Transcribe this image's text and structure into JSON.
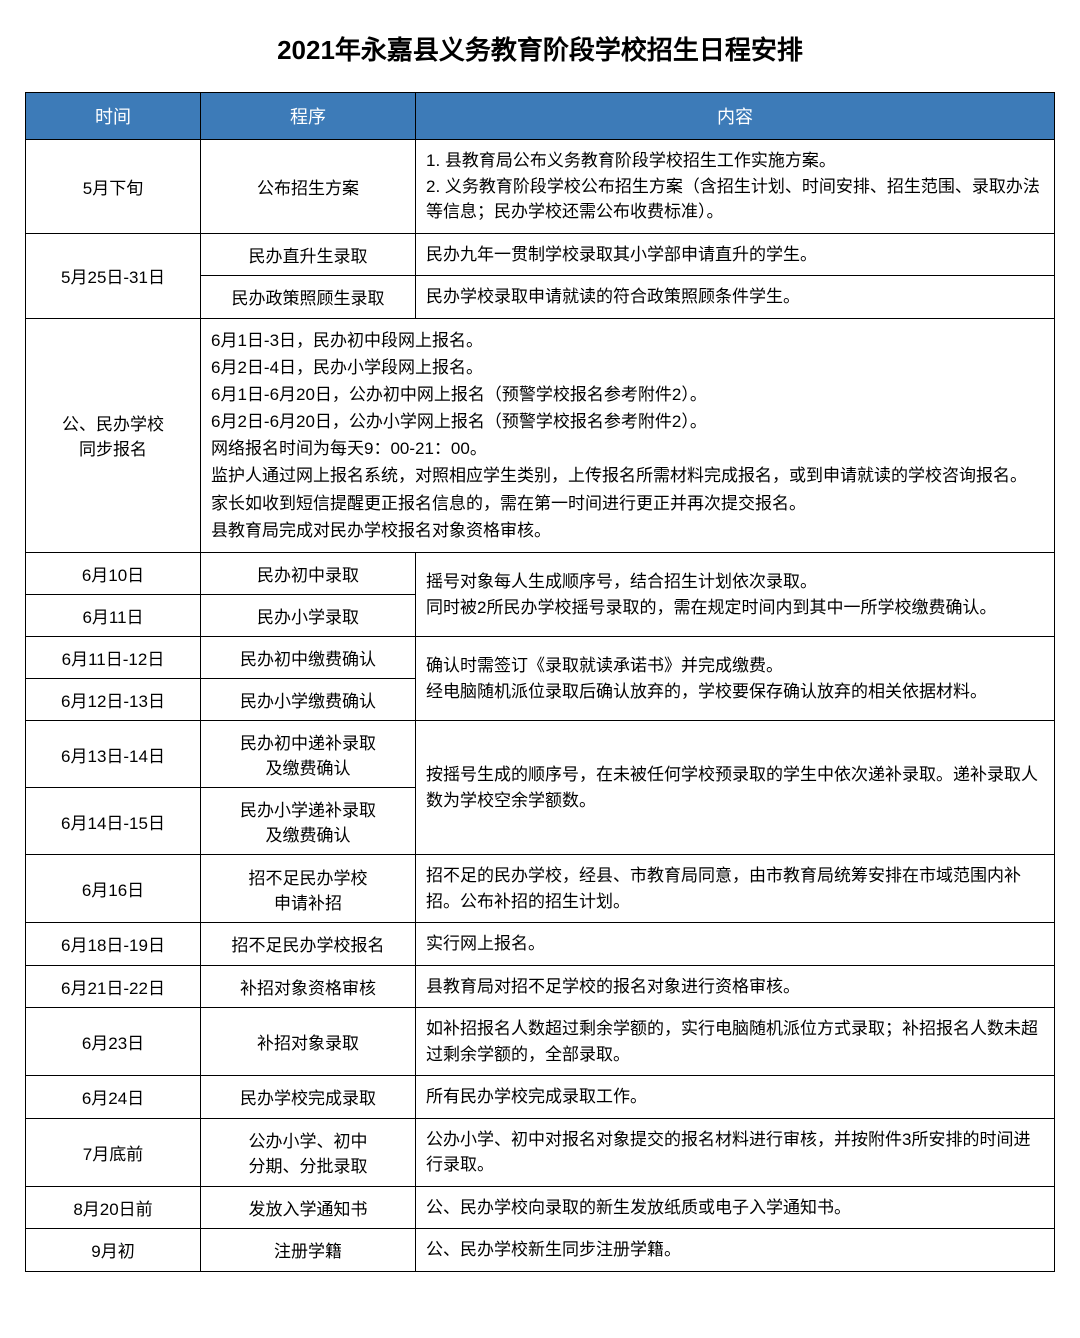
{
  "title": "2021年永嘉县义务教育阶段学校招生日程安排",
  "headers": {
    "time": "时间",
    "proc": "程序",
    "content": "内容"
  },
  "rows": {
    "r1_time": "5月下旬",
    "r1_proc": "公布招生方案",
    "r1_content": "1. 县教育局公布义务教育阶段学校招生工作实施方案。\n2. 义务教育阶段学校公布招生方案（含招生计划、时间安排、招生范围、录取办法等信息；民办学校还需公布收费标准）。",
    "r2_time": "5月25日-31日",
    "r2a_proc": "民办直升生录取",
    "r2a_content": "民办九年一贯制学校录取其小学部申请直升的学生。",
    "r2b_proc": "民办政策照顾生录取",
    "r2b_content": "民办学校录取申请就读的符合政策照顾条件学生。",
    "r3_time": "公、民办学校\n同步报名",
    "r3_content": "6月1日-3日，民办初中段网上报名。\n6月2日-4日，民办小学段网上报名。\n6月1日-6月20日，公办初中网上报名（预警学校报名参考附件2）。\n6月2日-6月20日，公办小学网上报名（预警学校报名参考附件2）。\n网络报名时间为每天9：00-21：00。\n监护人通过网上报名系统，对照相应学生类别，上传报名所需材料完成报名，或到申请就读的学校咨询报名。\n家长如收到短信提醒更正报名信息的，需在第一时间进行更正并再次提交报名。\n县教育局完成对民办学校报名对象资格审核。",
    "r4_time": "6月10日",
    "r4_proc": "民办初中录取",
    "r45_content": "摇号对象每人生成顺序号，结合招生计划依次录取。\n同时被2所民办学校摇号录取的，需在规定时间内到其中一所学校缴费确认。",
    "r5_time": "6月11日",
    "r5_proc": "民办小学录取",
    "r6_time": "6月11日-12日",
    "r6_proc": "民办初中缴费确认",
    "r67_content": "确认时需签订《录取就读承诺书》并完成缴费。\n经电脑随机派位录取后确认放弃的，学校要保存确认放弃的相关依据材料。",
    "r7_time": "6月12日-13日",
    "r7_proc": "民办小学缴费确认",
    "r8_time": "6月13日-14日",
    "r8_proc": "民办初中递补录取\n及缴费确认",
    "r89_content": "按摇号生成的顺序号，在未被任何学校预录取的学生中依次递补录取。递补录取人数为学校空余学额数。",
    "r9_time": "6月14日-15日",
    "r9_proc": "民办小学递补录取\n及缴费确认",
    "r10_time": "6月16日",
    "r10_proc": "招不足民办学校\n申请补招",
    "r10_content": "招不足的民办学校，经县、市教育局同意，由市教育局统筹安排在市域范围内补招。公布补招的招生计划。",
    "r11_time": "6月18日-19日",
    "r11_proc": "招不足民办学校报名",
    "r11_content": "实行网上报名。",
    "r12_time": "6月21日-22日",
    "r12_proc": "补招对象资格审核",
    "r12_content": "县教育局对招不足学校的报名对象进行资格审核。",
    "r13_time": "6月23日",
    "r13_proc": "补招对象录取",
    "r13_content": "如补招报名人数超过剩余学额的，实行电脑随机派位方式录取；补招报名人数未超过剩余学额的，全部录取。",
    "r14_time": "6月24日",
    "r14_proc": "民办学校完成录取",
    "r14_content": "所有民办学校完成录取工作。",
    "r15_time": "7月底前",
    "r15_proc": "公办小学、初中\n分期、分批录取",
    "r15_content": "公办小学、初中对报名对象提交的报名材料进行审核，并按附件3所安排的时间进行录取。",
    "r16_time": "8月20日前",
    "r16_proc": "发放入学通知书",
    "r16_content": "公、民办学校向录取的新生发放纸质或电子入学通知书。",
    "r17_time": "9月初",
    "r17_proc": "注册学籍",
    "r17_content": "公、民办学校新生同步注册学籍。"
  },
  "style": {
    "header_bg": "#3d7bb8",
    "header_text_color": "#ffffff",
    "border_color": "#000000",
    "title_fontsize": 26,
    "cell_fontsize": 17,
    "header_fontsize": 18,
    "col_time_width": 175,
    "col_proc_width": 215
  }
}
